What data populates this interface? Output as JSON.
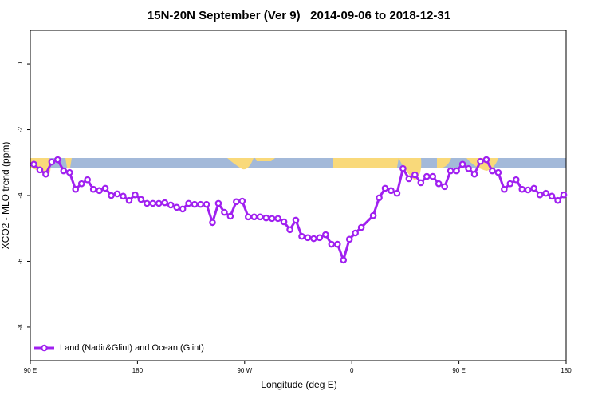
{
  "chart_data": {
    "type": "line",
    "title": "15N-20N September (Ver 9)   2014-09-06 to 2018-12-31",
    "x_label": "Longitude (deg E)",
    "y_label": "XCO2 - MLO trend (ppm)",
    "xlim": [
      90,
      540
    ],
    "ylim": [
      -9.02,
      1.02
    ],
    "xticks": [
      {
        "value": 90,
        "label": "90 E"
      },
      180,
      {
        "value": 270,
        "label": "90 W"
      },
      {
        "value": 360,
        "label": "0"
      },
      {
        "value": 450,
        "label": "90 E"
      },
      {
        "value": 540,
        "label": "180"
      }
    ],
    "yticks": [
      0,
      -2,
      -4,
      -6,
      -8
    ],
    "legend": "bottom-left",
    "series": [
      {
        "name": "Land (Nadir&Glint) and Ocean (Glint)",
        "color": "#a020f0",
        "x": [
          93,
          98,
          103,
          108,
          113,
          118,
          123,
          128,
          133,
          138,
          143,
          148,
          153,
          158,
          163,
          168,
          173,
          178,
          183,
          188,
          193,
          198,
          203,
          208,
          213,
          218,
          223,
          228,
          233,
          238,
          243,
          248,
          253,
          258,
          263,
          268,
          273,
          278,
          283,
          288,
          293,
          298,
          303,
          308,
          313,
          318,
          323,
          328,
          333,
          338,
          343,
          348,
          353,
          358,
          363,
          368,
          378,
          383,
          388,
          393,
          398,
          403,
          408,
          413,
          418,
          423,
          428,
          433,
          438,
          443,
          448,
          453,
          458,
          463,
          468,
          473,
          478,
          483,
          488,
          493,
          498,
          503,
          508,
          513,
          518,
          523,
          528,
          533,
          538
        ],
        "values": [
          -3.05,
          -3.22,
          -3.35,
          -2.98,
          -2.91,
          -3.25,
          -3.3,
          -3.81,
          -3.64,
          -3.52,
          -3.81,
          -3.85,
          -3.78,
          -4.0,
          -3.95,
          -4.02,
          -4.15,
          -3.98,
          -4.12,
          -4.24,
          -4.24,
          -4.24,
          -4.22,
          -4.29,
          -4.36,
          -4.41,
          -4.24,
          -4.27,
          -4.27,
          -4.27,
          -4.82,
          -4.24,
          -4.51,
          -4.63,
          -4.19,
          -4.17,
          -4.65,
          -4.65,
          -4.65,
          -4.68,
          -4.7,
          -4.7,
          -4.8,
          -5.04,
          -4.75,
          -5.24,
          -5.28,
          -5.31,
          -5.28,
          -5.19,
          -5.48,
          -5.48,
          -5.96,
          -5.33,
          -5.14,
          -4.97,
          -4.61,
          -4.07,
          -3.78,
          -3.85,
          -3.93,
          -3.18,
          -3.49,
          -3.37,
          -3.61,
          -3.42,
          -3.42,
          -3.64,
          -3.73,
          -3.25,
          -3.25,
          -3.05,
          -3.18,
          -3.35,
          -2.96,
          -2.91,
          -3.25,
          -3.3,
          -3.81,
          -3.64,
          -3.52,
          -3.81,
          -3.83,
          -3.78,
          -3.98,
          -3.93,
          -4.02,
          -4.15,
          -3.98
        ]
      }
    ]
  }
}
